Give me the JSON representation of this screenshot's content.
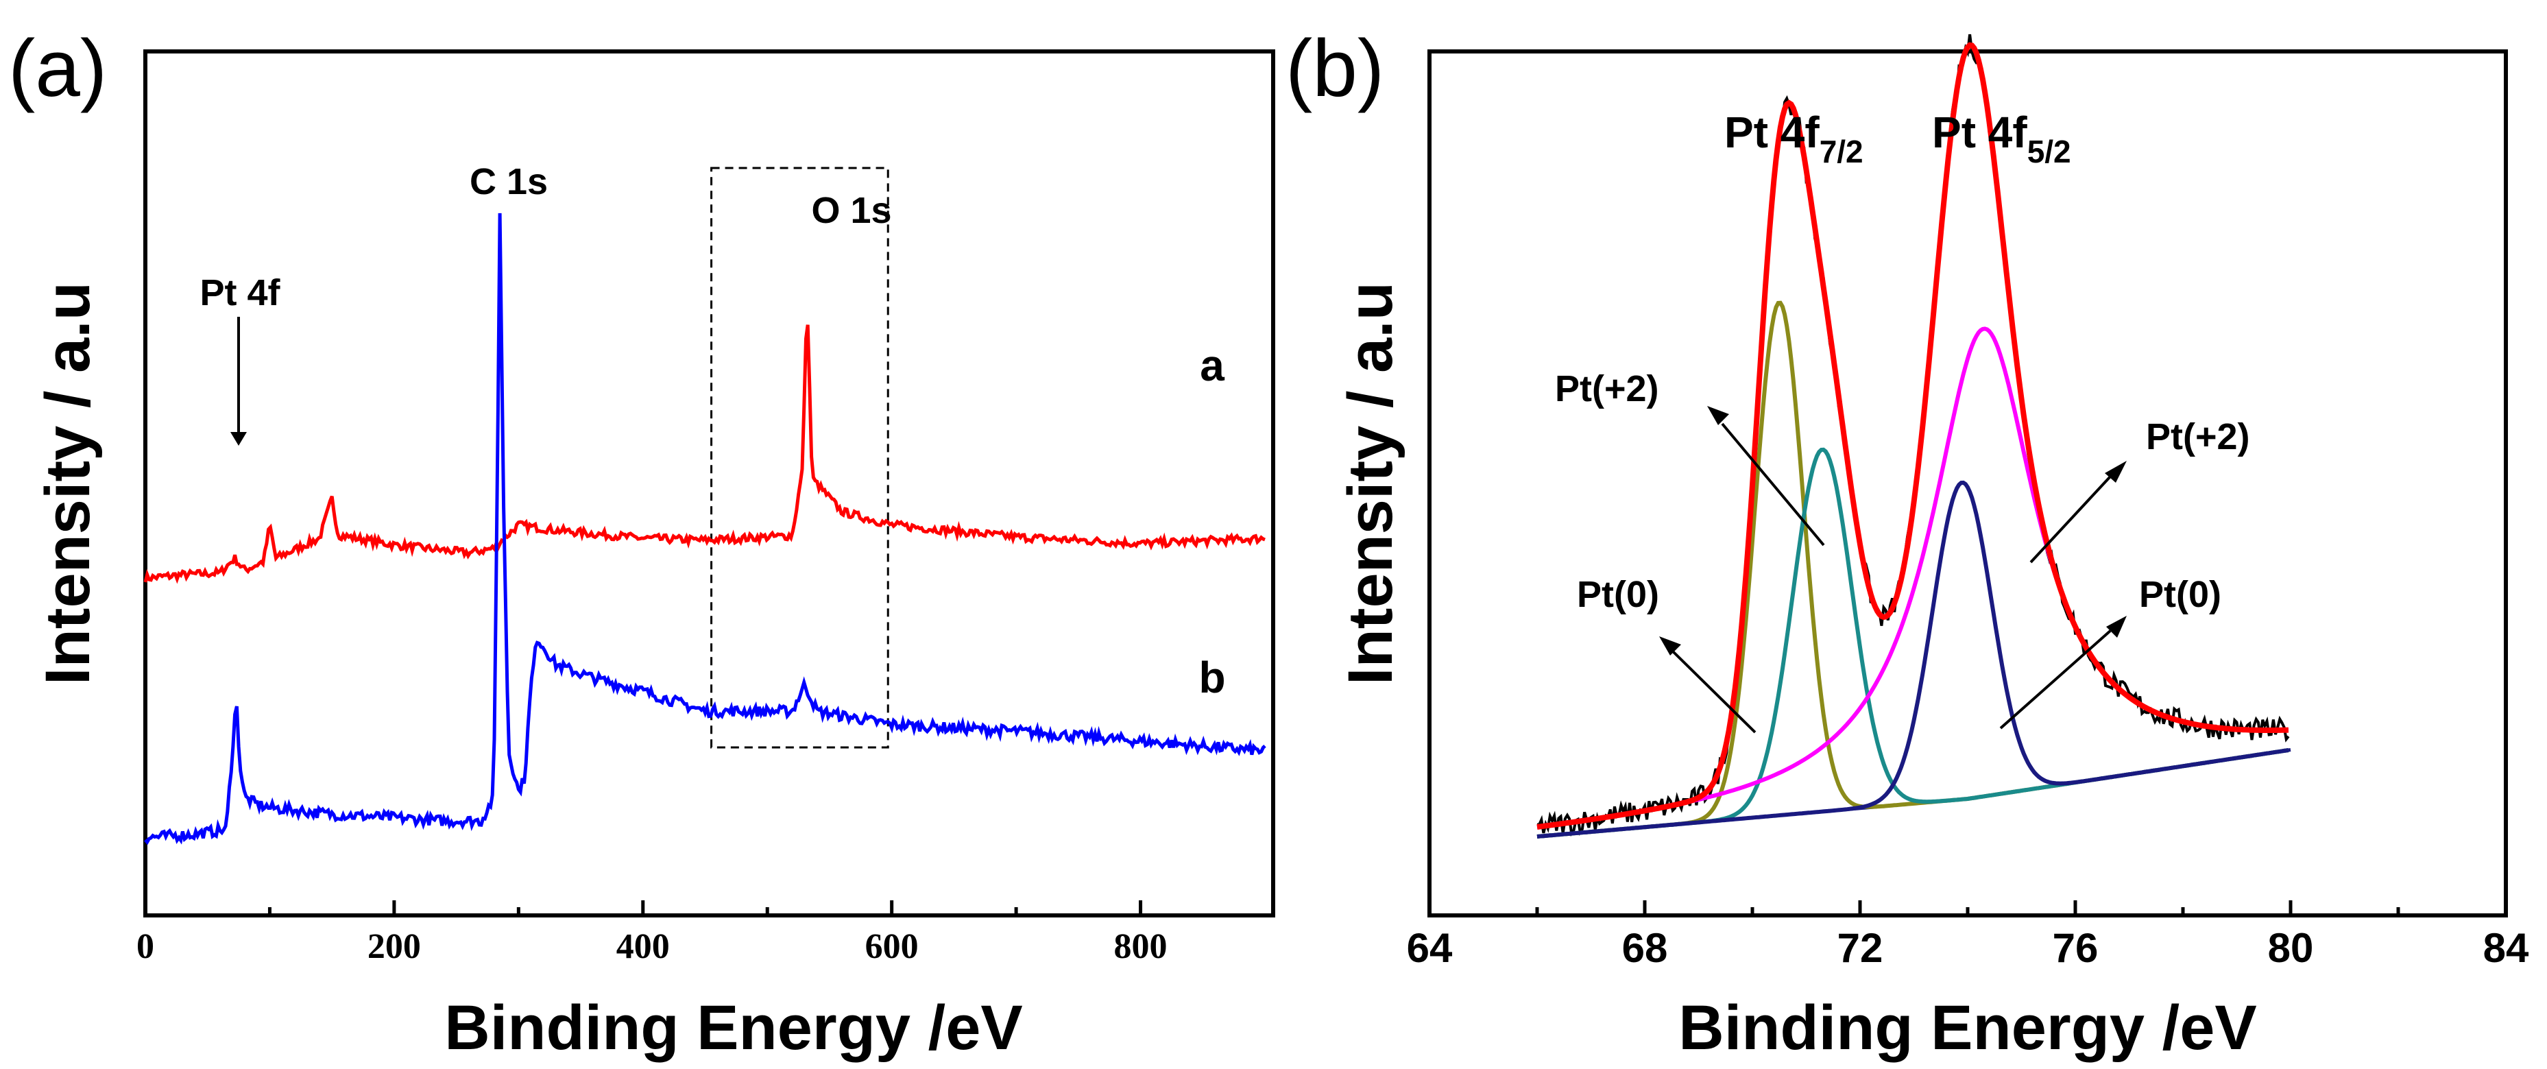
{
  "chart_data": [
    {
      "panel": "(a)",
      "type": "line",
      "title": "",
      "xlabel": "Binding Energy /eV",
      "ylabel": "Intensity / a.u",
      "xlim": [
        0,
        900
      ],
      "xticks": [
        "0",
        "200",
        "400",
        "600",
        "800"
      ],
      "yticks": [],
      "grid": false,
      "series": [
        {
          "name": "a",
          "color": "#ff0000",
          "x": [
            0,
            30,
            60,
            72,
            76,
            80,
            95,
            100,
            105,
            140,
            150,
            155,
            200,
            260,
            280,
            300,
            330,
            400,
            450,
            520,
            528,
            532,
            536,
            560,
            600,
            700,
            800,
            900
          ],
          "y": [
            0.44,
            0.445,
            0.448,
            0.47,
            0.46,
            0.452,
            0.465,
            0.52,
            0.47,
            0.5,
            0.56,
            0.505,
            0.49,
            0.478,
            0.485,
            0.52,
            0.512,
            0.5,
            0.497,
            0.504,
            0.6,
            0.86,
            0.59,
            0.54,
            0.52,
            0.502,
            0.492,
            0.5
          ]
        },
        {
          "name": "b",
          "color": "#0000ff",
          "x": [
            0,
            40,
            65,
            70,
            73,
            76,
            80,
            90,
            100,
            150,
            200,
            240,
            270,
            280,
            283,
            285,
            288,
            292,
            300,
            305,
            310,
            315,
            330,
            360,
            400,
            450,
            520,
            530,
            540,
            600,
            700,
            800,
            900
          ],
          "y": [
            0.05,
            0.055,
            0.062,
            0.18,
            0.26,
            0.16,
            0.11,
            0.1,
            0.095,
            0.085,
            0.08,
            0.075,
            0.075,
            0.11,
            0.6,
            0.99,
            0.55,
            0.18,
            0.12,
            0.14,
            0.28,
            0.35,
            0.31,
            0.29,
            0.27,
            0.24,
            0.24,
            0.28,
            0.24,
            0.22,
            0.21,
            0.195,
            0.18
          ]
        }
      ],
      "annotations": [
        "Pt 4f",
        "C 1s",
        "O 1s",
        "a",
        "b"
      ],
      "highlight_box_x": [
        455,
        597
      ]
    },
    {
      "panel": "(b)",
      "type": "line",
      "title": "",
      "xlabel": "Binding Energy /eV",
      "ylabel": "Intensity / a.u",
      "xlim": [
        64,
        84
      ],
      "xticks": [
        "64",
        "68",
        "72",
        "76",
        "80",
        "84"
      ],
      "yticks": [],
      "grid": false,
      "baseline": {
        "x": [
          66,
          74,
          80
        ],
        "y": [
          0.05,
          0.1,
          0.165
        ]
      },
      "components": [
        {
          "name": "Pt(0) 4f7/2",
          "color": "#8b8b1a",
          "center": 70.5,
          "height": 0.68,
          "width": 0.45
        },
        {
          "name": "Pt(+2) 4f7/2",
          "color": "#1a8b8b",
          "center": 71.3,
          "height": 0.48,
          "width": 0.55
        },
        {
          "name": "Pt(0) 4f5/2",
          "color": "#1a1a80",
          "center": 73.9,
          "height": 0.42,
          "width": 0.55
        },
        {
          "name": "Pt(+2) 4f5/2",
          "color": "#ff00ff",
          "center": 74.3,
          "height": 0.62,
          "width": 1.2
        }
      ],
      "fit_color": "#ff0000",
      "raw_color": "#000000",
      "annotations": {
        "peak1": {
          "base": "Pt 4f",
          "sub": "7/2"
        },
        "peak2": {
          "base": "Pt 4f",
          "sub": "5/2"
        },
        "labels": [
          "Pt(+2)",
          "Pt(0)",
          "Pt(+2)",
          "Pt(0)"
        ]
      }
    }
  ]
}
